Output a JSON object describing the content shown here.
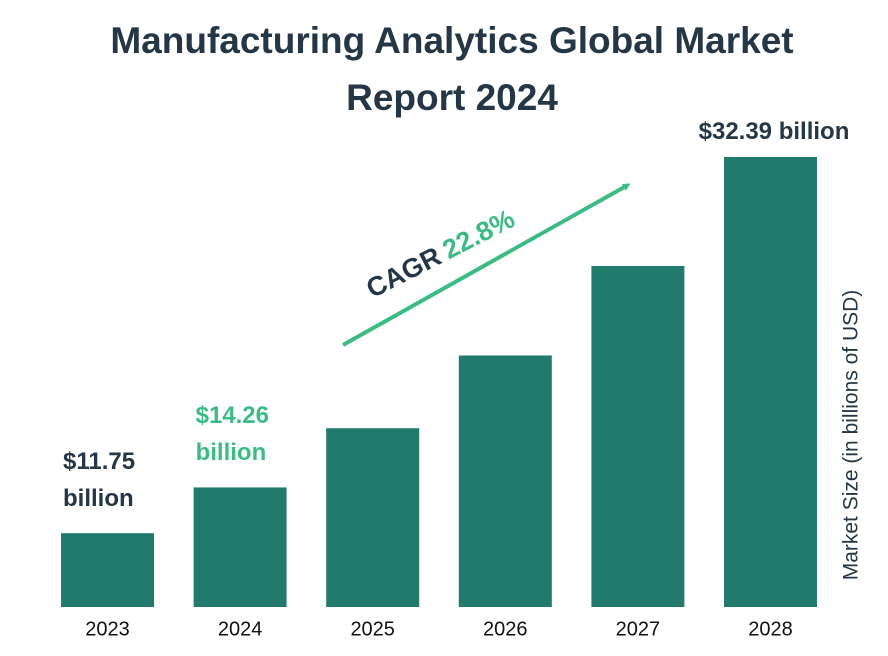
{
  "chart_data": {
    "type": "bar",
    "title": "Manufacturing Analytics Global Market Report 2024",
    "categories": [
      "2023",
      "2024",
      "2025",
      "2026",
      "2027",
      "2028"
    ],
    "values": [
      11.75,
      14.26,
      17.51,
      21.5,
      26.41,
      32.39
    ],
    "value_labels": [
      "$11.75 billion",
      "$14.26 billion",
      null,
      null,
      null,
      "$32.39 billion"
    ],
    "value_label_colors": [
      "#253746",
      "#3dbb85",
      null,
      null,
      null,
      "#253746"
    ],
    "color": "#217a6b",
    "ylim": [
      7.7,
      32.39
    ],
    "y_label": "Market Size (in billions of USD)",
    "annotation": {
      "label": "CAGR",
      "value": "22.8%"
    }
  }
}
